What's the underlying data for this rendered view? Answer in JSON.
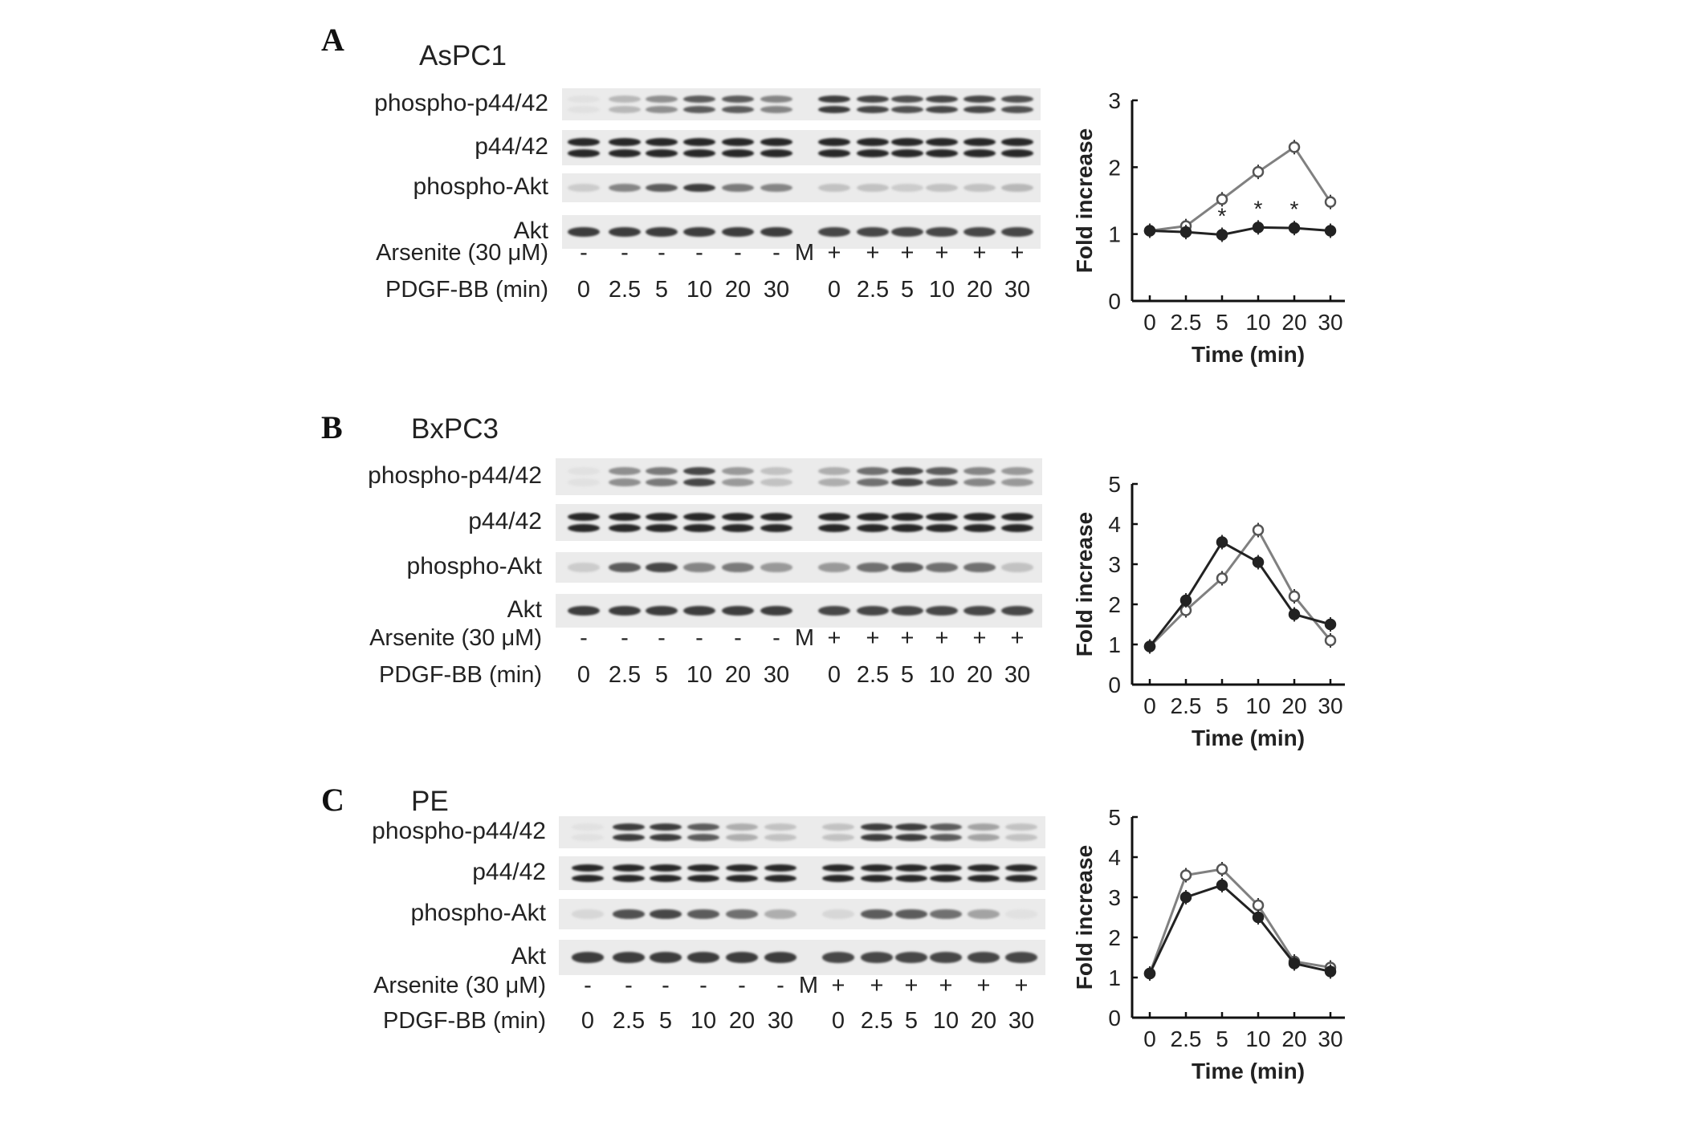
{
  "panels": [
    {
      "letter": "A",
      "cell_line": "AsPC1",
      "blots": [
        {
          "label": "phospho-p44/42",
          "kind": "double",
          "intensity": [
            0.05,
            0.25,
            0.45,
            0.7,
            0.7,
            0.5,
            0.0,
            0.85,
            0.8,
            0.75,
            0.8,
            0.8,
            0.75
          ]
        },
        {
          "label": "p44/42",
          "kind": "double",
          "intensity": [
            0.95,
            0.95,
            0.95,
            0.95,
            0.95,
            0.95,
            0.0,
            0.95,
            0.95,
            0.95,
            0.95,
            0.95,
            0.95
          ]
        },
        {
          "label": "phospho-Akt",
          "kind": "single",
          "intensity": [
            0.15,
            0.5,
            0.7,
            0.85,
            0.55,
            0.5,
            0.0,
            0.2,
            0.2,
            0.15,
            0.2,
            0.2,
            0.25
          ]
        },
        {
          "label": "Akt",
          "kind": "single",
          "intensity": [
            0.85,
            0.85,
            0.85,
            0.85,
            0.85,
            0.85,
            0.0,
            0.8,
            0.8,
            0.8,
            0.8,
            0.8,
            0.8
          ]
        }
      ],
      "arsenite_label": "Arsenite (30 μM)",
      "arsenite": [
        "-",
        "-",
        "-",
        "-",
        "-",
        "-",
        "M",
        "+",
        "+",
        "+",
        "+",
        "+",
        "+"
      ],
      "pdgf_label": "PDGF-BB (min)",
      "pdgf": [
        "0",
        "2.5",
        "5",
        "10",
        "20",
        "30",
        "",
        "0",
        "2.5",
        "5",
        "10",
        "20",
        "30"
      ]
    },
    {
      "letter": "B",
      "cell_line": "BxPC3",
      "blots": [
        {
          "label": "phospho-p44/42",
          "kind": "double",
          "intensity": [
            0.05,
            0.45,
            0.55,
            0.8,
            0.4,
            0.2,
            0.0,
            0.3,
            0.6,
            0.8,
            0.7,
            0.5,
            0.4
          ]
        },
        {
          "label": "p44/42",
          "kind": "double",
          "intensity": [
            0.95,
            0.95,
            0.95,
            0.95,
            0.95,
            0.95,
            0.0,
            0.95,
            0.95,
            0.95,
            0.95,
            0.95,
            0.95
          ]
        },
        {
          "label": "phospho-Akt",
          "kind": "single",
          "intensity": [
            0.15,
            0.7,
            0.8,
            0.5,
            0.55,
            0.4,
            0.0,
            0.4,
            0.6,
            0.7,
            0.6,
            0.6,
            0.2
          ]
        },
        {
          "label": "Akt",
          "kind": "single",
          "intensity": [
            0.85,
            0.85,
            0.85,
            0.85,
            0.85,
            0.85,
            0.0,
            0.8,
            0.8,
            0.8,
            0.8,
            0.8,
            0.8
          ]
        }
      ],
      "arsenite_label": "Arsenite (30 μM)",
      "arsenite": [
        "-",
        "-",
        "-",
        "-",
        "-",
        "-",
        "M",
        "+",
        "+",
        "+",
        "+",
        "+",
        "+"
      ],
      "pdgf_label": "PDGF-BB (min)",
      "pdgf": [
        "0",
        "2.5",
        "5",
        "10",
        "20",
        "30",
        "",
        "0",
        "2.5",
        "5",
        "10",
        "20",
        "30"
      ]
    },
    {
      "letter": "C",
      "cell_line": "PE",
      "blots": [
        {
          "label": "phospho-p44/42",
          "kind": "double",
          "intensity": [
            0.05,
            0.85,
            0.85,
            0.7,
            0.3,
            0.2,
            0.0,
            0.2,
            0.85,
            0.85,
            0.7,
            0.35,
            0.2
          ]
        },
        {
          "label": "p44/42",
          "kind": "double",
          "intensity": [
            0.95,
            0.95,
            0.95,
            0.95,
            0.95,
            0.95,
            0.0,
            0.95,
            0.95,
            0.95,
            0.95,
            0.95,
            0.95
          ]
        },
        {
          "label": "phospho-Akt",
          "kind": "single",
          "intensity": [
            0.1,
            0.75,
            0.8,
            0.7,
            0.6,
            0.3,
            0.0,
            0.1,
            0.7,
            0.7,
            0.6,
            0.35,
            0.05
          ]
        },
        {
          "label": "Akt",
          "kind": "single",
          "intensity": [
            0.85,
            0.85,
            0.85,
            0.85,
            0.85,
            0.85,
            0.0,
            0.8,
            0.8,
            0.8,
            0.8,
            0.8,
            0.8
          ]
        }
      ],
      "arsenite_label": "Arsenite (30 μM)",
      "arsenite": [
        "-",
        "-",
        "-",
        "-",
        "-",
        "-",
        "M",
        "+",
        "+",
        "+",
        "+",
        "+",
        "+"
      ],
      "pdgf_label": "PDGF-BB  (min)",
      "pdgf": [
        "0",
        "2.5",
        "5",
        "10",
        "20",
        "30",
        "",
        "0",
        "2.5",
        "5",
        "10",
        "20",
        "30"
      ]
    }
  ],
  "chart_data": [
    {
      "type": "line",
      "categories": [
        "0",
        "2.5",
        "5",
        "10",
        "20",
        "30"
      ],
      "ylim": [
        0,
        3
      ],
      "yticks": [
        "0",
        "1",
        "2",
        "3"
      ],
      "xlabel": "Time (min)",
      "ylabel": "Fold increase",
      "series": [
        {
          "marker": "open",
          "color": "#808080",
          "values": [
            1.05,
            1.12,
            1.52,
            1.93,
            2.3,
            1.48
          ]
        },
        {
          "marker": "filled",
          "color": "#222222",
          "values": [
            1.05,
            1.03,
            0.99,
            1.1,
            1.09,
            1.05
          ]
        }
      ],
      "annotations": [
        {
          "text": "*",
          "index": 2
        },
        {
          "text": "*",
          "index": 3
        },
        {
          "text": "*",
          "index": 4
        }
      ]
    },
    {
      "type": "line",
      "categories": [
        "0",
        "2.5",
        "5",
        "10",
        "20",
        "30"
      ],
      "ylim": [
        0,
        5
      ],
      "yticks": [
        "0",
        "1",
        "2",
        "3",
        "4",
        "5"
      ],
      "xlabel": "Time (min)",
      "ylabel": "Fold increase",
      "series": [
        {
          "marker": "open",
          "color": "#808080",
          "values": [
            0.95,
            1.85,
            2.65,
            3.85,
            2.2,
            1.1
          ]
        },
        {
          "marker": "filled",
          "color": "#222222",
          "values": [
            0.95,
            2.1,
            3.55,
            3.05,
            1.75,
            1.5
          ]
        }
      ],
      "annotations": []
    },
    {
      "type": "line",
      "categories": [
        "0",
        "2.5",
        "5",
        "10",
        "20",
        "30"
      ],
      "ylim": [
        0,
        5
      ],
      "yticks": [
        "0",
        "1",
        "2",
        "3",
        "4",
        "5"
      ],
      "xlabel": "Time (min)",
      "ylabel": "Fold increase",
      "series": [
        {
          "marker": "open",
          "color": "#808080",
          "values": [
            1.1,
            3.55,
            3.7,
            2.8,
            1.4,
            1.25
          ]
        },
        {
          "marker": "filled",
          "color": "#222222",
          "values": [
            1.1,
            3.0,
            3.3,
            2.5,
            1.35,
            1.15
          ]
        }
      ],
      "annotations": []
    }
  ]
}
